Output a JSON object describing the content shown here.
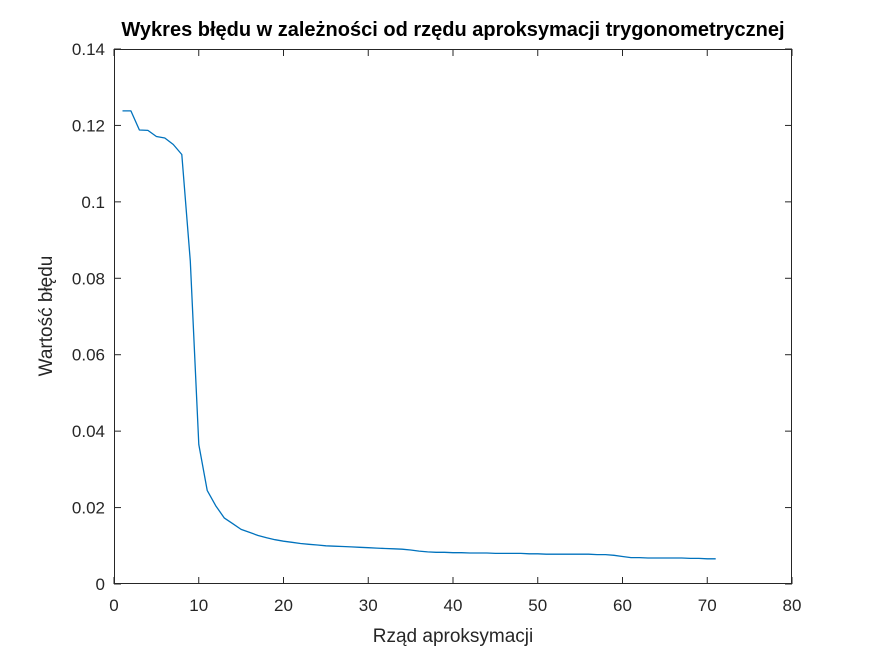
{
  "chart_data": {
    "type": "line",
    "title": "Wykres błędu w zależności od rzędu aproksymacji trygonometrycznej",
    "xlabel": "Rząd aproksymacji",
    "ylabel": "Wartość błędu",
    "xlim": [
      0,
      80
    ],
    "ylim": [
      0,
      0.14
    ],
    "x_ticks": [
      0,
      10,
      20,
      30,
      40,
      50,
      60,
      70,
      80
    ],
    "x_tick_labels": [
      "0",
      "10",
      "20",
      "30",
      "40",
      "50",
      "60",
      "70",
      "80"
    ],
    "y_ticks": [
      0,
      0.02,
      0.04,
      0.06,
      0.08,
      0.1,
      0.12,
      0.14
    ],
    "y_tick_labels": [
      "0",
      "0.02",
      "0.04",
      "0.06",
      "0.08",
      "0.1",
      "0.12",
      "0.14"
    ],
    "grid": false,
    "box": true,
    "series": [
      {
        "color": "#0072bd",
        "x": [
          1,
          2,
          3,
          4,
          5,
          6,
          7,
          8,
          9,
          10,
          11,
          12,
          13,
          14,
          15,
          16,
          17,
          18,
          19,
          20,
          21,
          22,
          23,
          24,
          25,
          26,
          27,
          28,
          29,
          30,
          31,
          32,
          33,
          34,
          35,
          36,
          37,
          38,
          39,
          40,
          41,
          42,
          43,
          44,
          45,
          46,
          47,
          48,
          49,
          50,
          51,
          52,
          53,
          54,
          55,
          56,
          57,
          58,
          59,
          60,
          61,
          62,
          63,
          64,
          65,
          66,
          67,
          68,
          69,
          70,
          71
        ],
        "values": [
          0.1238,
          0.1238,
          0.1188,
          0.1187,
          0.1171,
          0.1167,
          0.115,
          0.1124,
          0.0845,
          0.0365,
          0.0245,
          0.0205,
          0.0173,
          0.0158,
          0.0143,
          0.0135,
          0.0127,
          0.0121,
          0.0116,
          0.0112,
          0.0109,
          0.0106,
          0.0104,
          0.0102,
          0.01,
          0.0099,
          0.0098,
          0.0097,
          0.0096,
          0.0095,
          0.0094,
          0.0093,
          0.0092,
          0.0091,
          0.0089,
          0.0086,
          0.0084,
          0.0083,
          0.0083,
          0.0082,
          0.0082,
          0.0081,
          0.0081,
          0.0081,
          0.008,
          0.008,
          0.008,
          0.008,
          0.0079,
          0.0079,
          0.0078,
          0.0078,
          0.0078,
          0.0078,
          0.0078,
          0.0078,
          0.0077,
          0.0077,
          0.0075,
          0.0072,
          0.0069,
          0.0069,
          0.0068,
          0.0068,
          0.0068,
          0.0068,
          0.0068,
          0.0067,
          0.0067,
          0.0066,
          0.0066
        ]
      }
    ]
  }
}
